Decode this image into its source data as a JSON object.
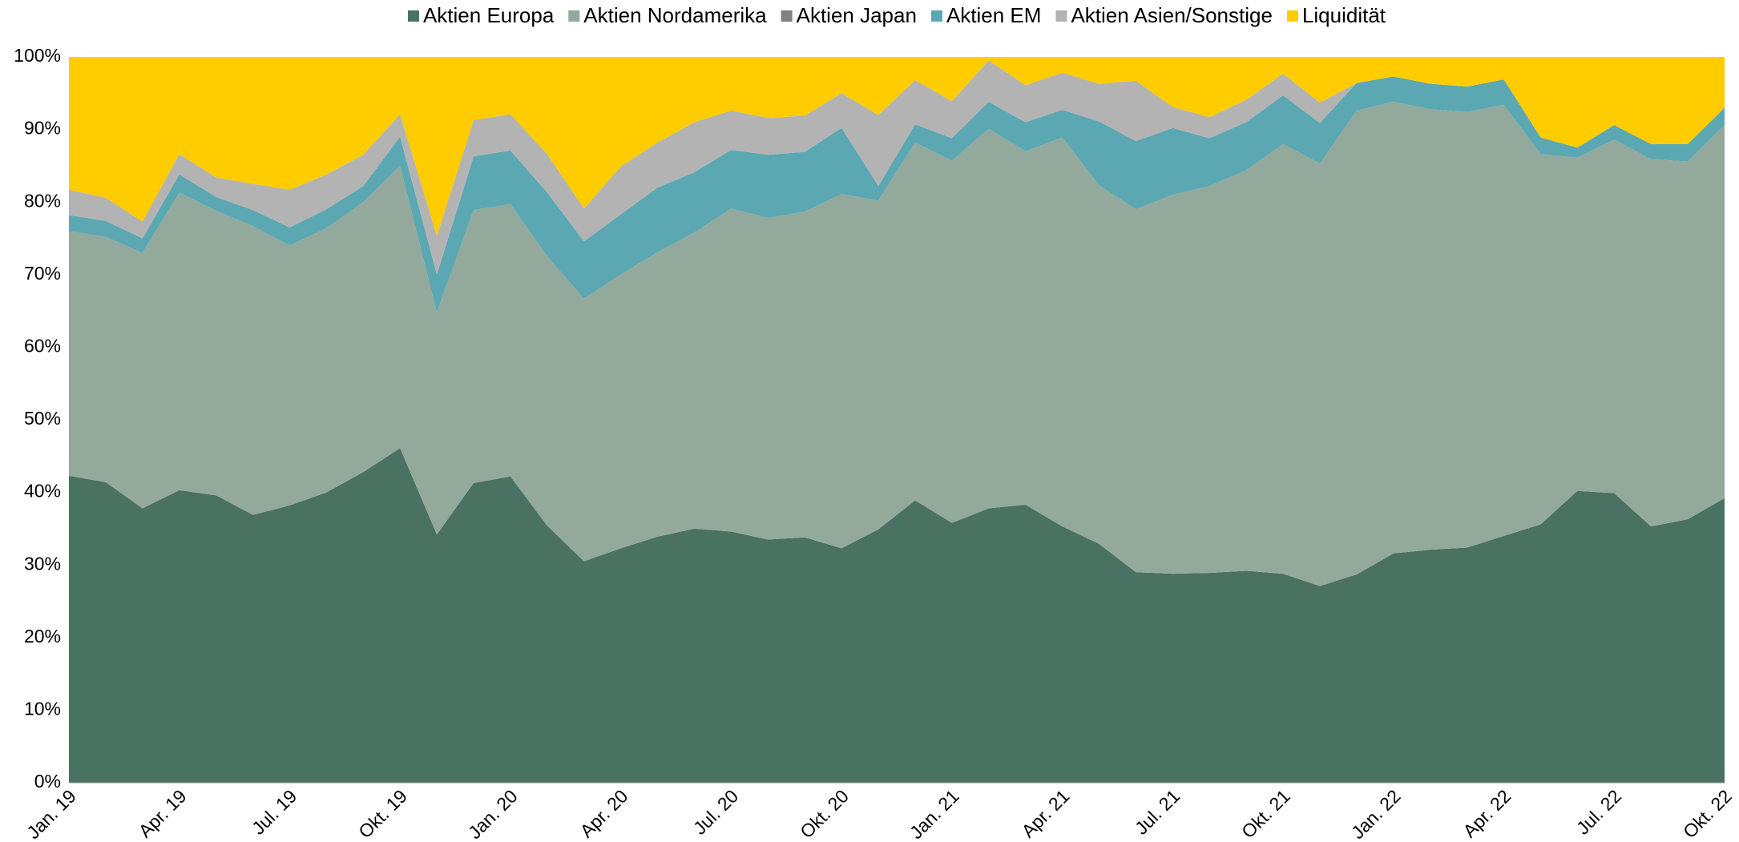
{
  "chart_data": {
    "type": "stacked_area",
    "categories": [
      "Jan. 19",
      null,
      null,
      "Apr. 19",
      null,
      null,
      "Jul. 19",
      null,
      null,
      "Okt. 19",
      null,
      null,
      "Jan. 20",
      null,
      null,
      "Apr. 20",
      null,
      null,
      "Jul. 20",
      null,
      null,
      "Okt. 20",
      null,
      null,
      "Jan. 21",
      null,
      null,
      "Apr. 21",
      null,
      null,
      "Jul. 21",
      null,
      null,
      "Okt. 21",
      null,
      null,
      "Jan. 22",
      null,
      null,
      "Apr. 22",
      null,
      null,
      "Jul. 22",
      null,
      null,
      "Okt. 22"
    ],
    "series": [
      {
        "name": "Aktien Europa",
        "color": "#4a7262",
        "values": [
          42.3,
          41.4,
          37.8,
          40.3,
          39.6,
          36.9,
          38.2,
          40.0,
          42.8,
          46.1,
          34.2,
          41.3,
          42.2,
          35.4,
          30.5,
          32.3,
          33.9,
          35.0,
          34.6,
          33.5,
          33.8,
          32.3,
          34.9,
          38.9,
          35.8,
          37.8,
          38.3,
          35.3,
          32.9,
          29.0,
          28.8,
          28.9,
          29.2,
          28.8,
          27.1,
          28.7,
          31.6,
          32.1,
          32.4,
          34.0,
          35.6,
          40.2,
          39.9,
          35.3,
          36.3,
          39.2
        ]
      },
      {
        "name": "Aktien Nordamerika",
        "color": "#93a99c",
        "values": [
          33.7,
          33.8,
          35.2,
          41.0,
          39.2,
          39.8,
          35.8,
          36.4,
          37.2,
          38.9,
          30.6,
          37.6,
          37.5,
          37.1,
          36.2,
          37.7,
          39.2,
          40.8,
          44.5,
          44.3,
          44.9,
          48.8,
          45.3,
          49.3,
          49.9,
          52.3,
          48.7,
          53.6,
          49.4,
          50.0,
          52.2,
          53.3,
          55.2,
          59.2,
          58.2,
          63.9,
          62.2,
          60.7,
          60.0,
          59.4,
          51.0,
          45.9,
          48.7,
          50.6,
          49.3,
          51.4
        ]
      },
      {
        "name": "Aktien Japan",
        "color": "#808080",
        "values": [
          0,
          0,
          0,
          0,
          0,
          0,
          0,
          0,
          0,
          0,
          0,
          0,
          0,
          0,
          0,
          0,
          0,
          0,
          0,
          0,
          0,
          0,
          0,
          0,
          0,
          0,
          0,
          0,
          0,
          0,
          0,
          0,
          0,
          0,
          0,
          0,
          0,
          0,
          0,
          0,
          0,
          0,
          0,
          0,
          0,
          0
        ]
      },
      {
        "name": "Aktien EM",
        "color": "#5ba8b3",
        "values": [
          2.2,
          2.2,
          2.0,
          2.5,
          1.9,
          2.2,
          2.5,
          2.6,
          2.2,
          4.0,
          5.2,
          7.4,
          7.4,
          8.8,
          7.9,
          8.3,
          8.9,
          8.3,
          8.1,
          8.7,
          8.2,
          9.1,
          2.0,
          2.5,
          3.1,
          3.7,
          4.0,
          3.8,
          8.8,
          9.4,
          9.2,
          6.6,
          6.6,
          6.7,
          5.6,
          3.8,
          3.5,
          3.5,
          3.5,
          3.5,
          2.3,
          1.4,
          2.0,
          2.1,
          2.4,
          2.4
        ]
      },
      {
        "name": "Aktien Asien/Sonstige",
        "color": "#b3b3b3",
        "values": [
          3.5,
          3.2,
          2.3,
          2.8,
          2.7,
          3.6,
          5.2,
          4.8,
          4.3,
          3.1,
          5.3,
          5.0,
          5.0,
          5.3,
          4.5,
          6.6,
          6.2,
          6.9,
          5.4,
          5.1,
          5.0,
          4.8,
          9.8,
          6.1,
          5.1,
          5.7,
          5.1,
          5.1,
          5.2,
          8.3,
          2.9,
          2.9,
          3.1,
          3.0,
          2.8,
          0,
          0,
          0,
          0,
          0,
          0,
          0,
          0,
          0,
          0,
          0
        ]
      },
      {
        "name": "Liquidität",
        "color": "#ffcc00",
        "values": [
          18.3,
          19.4,
          22.7,
          13.4,
          16.6,
          17.5,
          18.3,
          16.2,
          13.5,
          7.9,
          24.7,
          8.7,
          7.9,
          13.4,
          20.9,
          15.1,
          11.8,
          9.0,
          7.4,
          8.4,
          8.1,
          5.0,
          8.0,
          3.2,
          6.1,
          0.5,
          3.9,
          2.2,
          3.7,
          3.3,
          6.9,
          8.3,
          5.9,
          2.3,
          6.3,
          3.6,
          2.7,
          3.7,
          4.1,
          3.1,
          11.1,
          12.5,
          9.4,
          12.0,
          12.0,
          7.0
        ]
      }
    ],
    "ylim": [
      0,
      100
    ],
    "yticks": [
      {
        "value": 0,
        "label": "0%"
      },
      {
        "value": 10,
        "label": "10%"
      },
      {
        "value": 20,
        "label": "20%"
      },
      {
        "value": 30,
        "label": "30%"
      },
      {
        "value": 40,
        "label": "40%"
      },
      {
        "value": 50,
        "label": "50%"
      },
      {
        "value": 60,
        "label": "60%"
      },
      {
        "value": 70,
        "label": "70%"
      },
      {
        "value": 80,
        "label": "80%"
      },
      {
        "value": 90,
        "label": "90%"
      },
      {
        "value": 100,
        "label": "100%"
      }
    ],
    "legend": "top"
  }
}
